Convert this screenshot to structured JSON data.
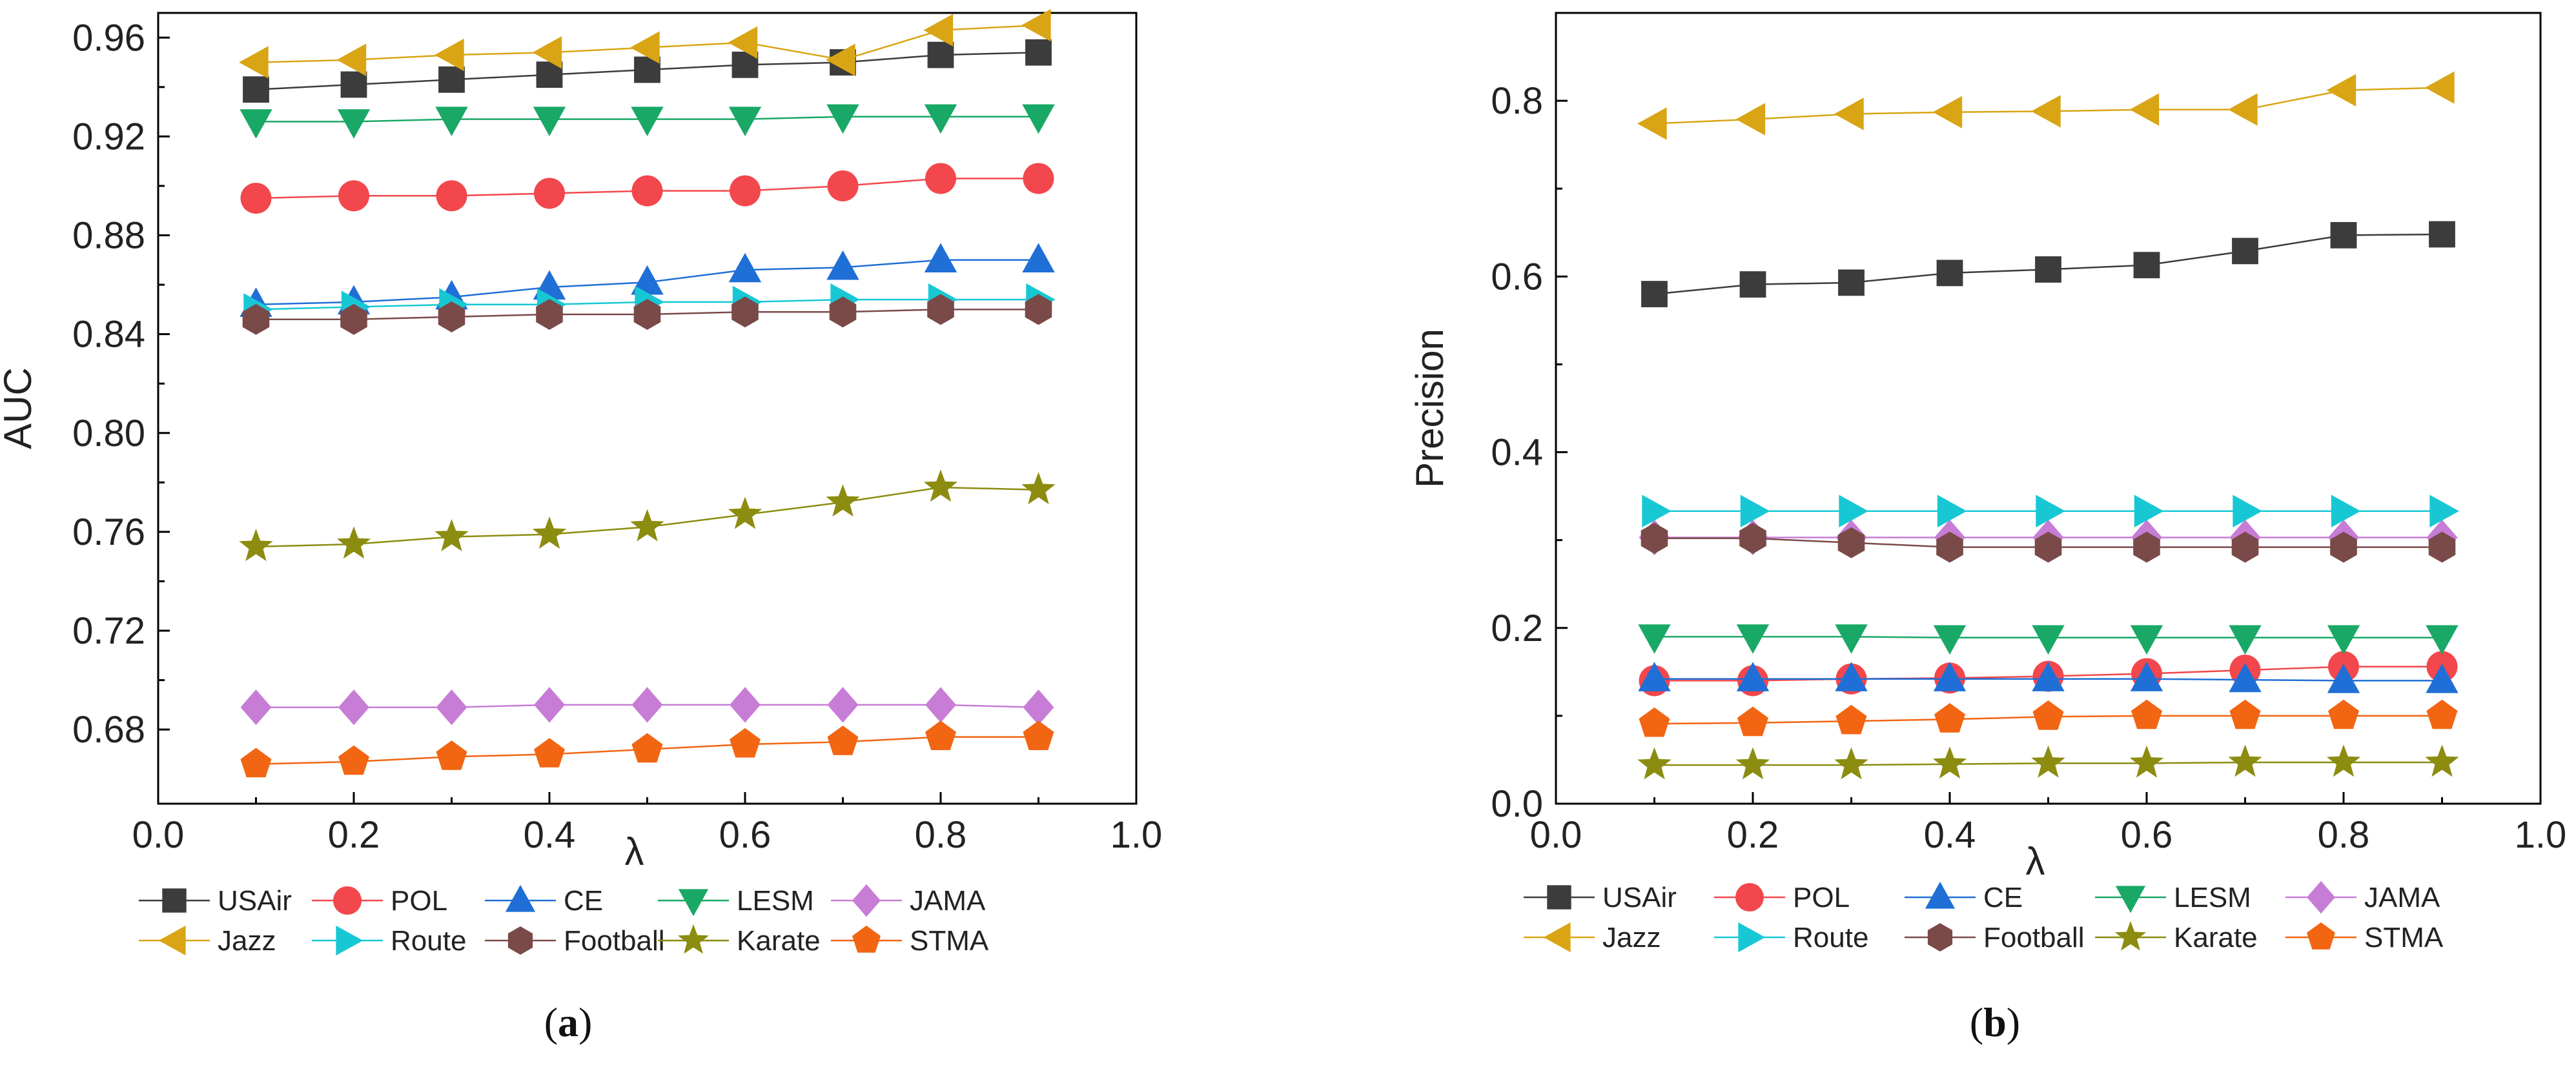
{
  "figure": {
    "captions": [
      {
        "open": "(",
        "letter": "a",
        "close": ")"
      },
      {
        "open": "(",
        "letter": "b",
        "close": ")"
      }
    ]
  },
  "colors": {
    "USAir": "#3c3c3c",
    "Jazz": "#d9a514",
    "POL": "#f2474c",
    "Route": "#17c8d4",
    "CE": "#1f6fd6",
    "Football": "#7a4a48",
    "LESM": "#19a866",
    "Karate": "#8c8c10",
    "JAMA": "#c77dd6",
    "STMA": "#f26512"
  },
  "series_meta": [
    {
      "name": "USAir",
      "marker": "square"
    },
    {
      "name": "POL",
      "marker": "circle"
    },
    {
      "name": "CE",
      "marker": "triangle-up"
    },
    {
      "name": "LESM",
      "marker": "triangle-down"
    },
    {
      "name": "JAMA",
      "marker": "diamond"
    },
    {
      "name": "Jazz",
      "marker": "triangle-left"
    },
    {
      "name": "Route",
      "marker": "triangle-right"
    },
    {
      "name": "Football",
      "marker": "hexagon"
    },
    {
      "name": "Karate",
      "marker": "star"
    },
    {
      "name": "STMA",
      "marker": "pentagon"
    }
  ],
  "chart_data": [
    {
      "type": "line",
      "panel": "a",
      "xlabel": "λ",
      "ylabel": "AUC",
      "xlim": [
        0.0,
        1.0
      ],
      "ylim": [
        0.65,
        0.97
      ],
      "xticks": [
        "0.0",
        "0.2",
        "0.4",
        "0.6",
        "0.8",
        "1.0"
      ],
      "xtick_values": [
        0.0,
        0.2,
        0.4,
        0.6,
        0.8,
        1.0
      ],
      "yticks": [
        "0.68",
        "0.72",
        "0.76",
        "0.80",
        "0.84",
        "0.88",
        "0.92",
        "0.96"
      ],
      "ytick_values": [
        0.68,
        0.72,
        0.76,
        0.8,
        0.84,
        0.88,
        0.92,
        0.96
      ],
      "x": [
        0.1,
        0.2,
        0.3,
        0.4,
        0.5,
        0.6,
        0.7,
        0.8,
        0.9
      ],
      "legend_position": "bottom",
      "series": [
        {
          "name": "USAir",
          "values": [
            0.939,
            0.941,
            0.943,
            0.945,
            0.947,
            0.949,
            0.95,
            0.953,
            0.954
          ]
        },
        {
          "name": "POL",
          "values": [
            0.895,
            0.896,
            0.896,
            0.897,
            0.898,
            0.898,
            0.9,
            0.903,
            0.903
          ]
        },
        {
          "name": "CE",
          "values": [
            0.852,
            0.853,
            0.855,
            0.859,
            0.861,
            0.866,
            0.867,
            0.87,
            0.87
          ]
        },
        {
          "name": "LESM",
          "values": [
            0.926,
            0.926,
            0.927,
            0.927,
            0.927,
            0.927,
            0.928,
            0.928,
            0.928
          ]
        },
        {
          "name": "JAMA",
          "values": [
            0.689,
            0.689,
            0.689,
            0.69,
            0.69,
            0.69,
            0.69,
            0.69,
            0.689
          ]
        },
        {
          "name": "Jazz",
          "values": [
            0.95,
            0.951,
            0.953,
            0.954,
            0.956,
            0.958,
            0.951,
            0.963,
            0.965
          ]
        },
        {
          "name": "Route",
          "values": [
            0.85,
            0.851,
            0.852,
            0.852,
            0.853,
            0.853,
            0.854,
            0.854,
            0.854
          ]
        },
        {
          "name": "Football",
          "values": [
            0.846,
            0.846,
            0.847,
            0.848,
            0.848,
            0.849,
            0.849,
            0.85,
            0.85
          ]
        },
        {
          "name": "Karate",
          "values": [
            0.754,
            0.755,
            0.758,
            0.759,
            0.762,
            0.767,
            0.772,
            0.778,
            0.777
          ]
        },
        {
          "name": "STMA",
          "values": [
            0.666,
            0.667,
            0.669,
            0.67,
            0.672,
            0.674,
            0.675,
            0.677,
            0.677
          ]
        }
      ]
    },
    {
      "type": "line",
      "panel": "b",
      "xlabel": "λ",
      "ylabel": "Precision",
      "xlim": [
        0.0,
        1.0
      ],
      "ylim": [
        0.0,
        0.9
      ],
      "xticks": [
        "0.0",
        "0.2",
        "0.4",
        "0.6",
        "0.8",
        "1.0"
      ],
      "xtick_values": [
        0.0,
        0.2,
        0.4,
        0.6,
        0.8,
        1.0
      ],
      "yticks": [
        "0.0",
        "0.2",
        "0.4",
        "0.6",
        "0.8"
      ],
      "ytick_values": [
        0.0,
        0.2,
        0.4,
        0.6,
        0.8
      ],
      "x": [
        0.1,
        0.2,
        0.3,
        0.4,
        0.5,
        0.6,
        0.7,
        0.8,
        0.9
      ],
      "legend_position": "bottom",
      "series": [
        {
          "name": "USAir",
          "values": [
            0.58,
            0.591,
            0.593,
            0.604,
            0.608,
            0.613,
            0.629,
            0.647,
            0.648
          ]
        },
        {
          "name": "POL",
          "values": [
            0.14,
            0.14,
            0.142,
            0.143,
            0.145,
            0.148,
            0.152,
            0.156,
            0.156
          ]
        },
        {
          "name": "CE",
          "values": [
            0.142,
            0.142,
            0.142,
            0.142,
            0.142,
            0.142,
            0.141,
            0.14,
            0.14
          ]
        },
        {
          "name": "LESM",
          "values": [
            0.19,
            0.19,
            0.19,
            0.189,
            0.189,
            0.189,
            0.189,
            0.189,
            0.189
          ]
        },
        {
          "name": "JAMA",
          "values": [
            0.303,
            0.303,
            0.303,
            0.303,
            0.303,
            0.303,
            0.303,
            0.303,
            0.303
          ]
        },
        {
          "name": "Jazz",
          "values": [
            0.774,
            0.779,
            0.785,
            0.787,
            0.788,
            0.79,
            0.79,
            0.812,
            0.815
          ]
        },
        {
          "name": "Route",
          "values": [
            0.333,
            0.333,
            0.333,
            0.333,
            0.333,
            0.333,
            0.333,
            0.333,
            0.333
          ]
        },
        {
          "name": "Football",
          "values": [
            0.302,
            0.302,
            0.297,
            0.292,
            0.292,
            0.292,
            0.292,
            0.292,
            0.292
          ]
        },
        {
          "name": "Karate",
          "values": [
            0.044,
            0.044,
            0.044,
            0.045,
            0.046,
            0.046,
            0.047,
            0.047,
            0.047
          ]
        },
        {
          "name": "STMA",
          "values": [
            0.091,
            0.092,
            0.094,
            0.096,
            0.099,
            0.1,
            0.1,
            0.1,
            0.1
          ]
        }
      ]
    }
  ]
}
